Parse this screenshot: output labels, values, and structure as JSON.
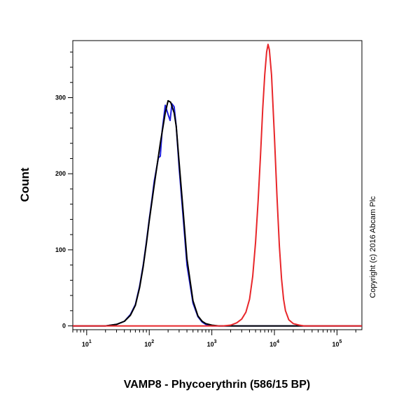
{
  "chart_data": {
    "type": "line",
    "xlabel": "VAMP8 - Phycoerythrin (586/15 BP)",
    "ylabel": "Count",
    "x_scale": "log",
    "xlim": [
      6,
      250000
    ],
    "ylim": [
      -5,
      375
    ],
    "y_ticks": [
      {
        "value": 0,
        "label": "0"
      },
      {
        "value": 100,
        "label": "100"
      },
      {
        "value": 200,
        "label": "200"
      },
      {
        "value": 300,
        "label": "300"
      }
    ],
    "x_ticks": [
      {
        "value": 10,
        "base": "10",
        "exp": "1"
      },
      {
        "value": 100,
        "base": "10",
        "exp": "2"
      },
      {
        "value": 1000,
        "base": "10",
        "exp": "3"
      },
      {
        "value": 10000,
        "base": "10",
        "exp": "4"
      },
      {
        "value": 100000,
        "base": "10",
        "exp": "5"
      }
    ],
    "grid": false,
    "legend": "none",
    "series": [
      {
        "color": "#1f1fe0",
        "points": [
          [
            6,
            0
          ],
          [
            20,
            0
          ],
          [
            30,
            2
          ],
          [
            40,
            6
          ],
          [
            50,
            15
          ],
          [
            60,
            28
          ],
          [
            70,
            52
          ],
          [
            80,
            80
          ],
          [
            90,
            110
          ],
          [
            100,
            140
          ],
          [
            110,
            165
          ],
          [
            120,
            190
          ],
          [
            140,
            221
          ],
          [
            150,
            223
          ],
          [
            160,
            255
          ],
          [
            180,
            290
          ],
          [
            200,
            278
          ],
          [
            215,
            270
          ],
          [
            230,
            292
          ],
          [
            250,
            288
          ],
          [
            270,
            262
          ],
          [
            300,
            208
          ],
          [
            350,
            140
          ],
          [
            400,
            80
          ],
          [
            500,
            30
          ],
          [
            600,
            12
          ],
          [
            700,
            5
          ],
          [
            800,
            2
          ],
          [
            1000,
            0
          ],
          [
            250000,
            0
          ]
        ]
      },
      {
        "color": "#000000",
        "points": [
          [
            6,
            0
          ],
          [
            20,
            0
          ],
          [
            30,
            2
          ],
          [
            40,
            6
          ],
          [
            50,
            14
          ],
          [
            60,
            27
          ],
          [
            70,
            50
          ],
          [
            80,
            78
          ],
          [
            90,
            108
          ],
          [
            100,
            138
          ],
          [
            120,
            185
          ],
          [
            150,
            240
          ],
          [
            180,
            280
          ],
          [
            200,
            296
          ],
          [
            220,
            294
          ],
          [
            250,
            280
          ],
          [
            270,
            262
          ],
          [
            300,
            215
          ],
          [
            350,
            148
          ],
          [
            400,
            88
          ],
          [
            500,
            33
          ],
          [
            600,
            13
          ],
          [
            700,
            6
          ],
          [
            800,
            3
          ],
          [
            1000,
            1
          ],
          [
            1300,
            0
          ],
          [
            250000,
            0
          ]
        ]
      },
      {
        "color": "#e8262a",
        "points": [
          [
            6,
            0
          ],
          [
            1500,
            0
          ],
          [
            2000,
            1
          ],
          [
            2500,
            4
          ],
          [
            3000,
            9
          ],
          [
            3500,
            18
          ],
          [
            4000,
            35
          ],
          [
            4500,
            65
          ],
          [
            5000,
            110
          ],
          [
            5500,
            165
          ],
          [
            6000,
            225
          ],
          [
            6500,
            285
          ],
          [
            7000,
            330
          ],
          [
            7500,
            360
          ],
          [
            7900,
            370
          ],
          [
            8300,
            363
          ],
          [
            9000,
            330
          ],
          [
            10000,
            250
          ],
          [
            11000,
            170
          ],
          [
            12000,
            105
          ],
          [
            13000,
            62
          ],
          [
            14000,
            35
          ],
          [
            15000,
            20
          ],
          [
            17000,
            8
          ],
          [
            20000,
            3
          ],
          [
            25000,
            1
          ],
          [
            30000,
            0
          ],
          [
            250000,
            0
          ]
        ]
      }
    ]
  },
  "watermark": "Copyright (c) 2016 Abcam Plc"
}
